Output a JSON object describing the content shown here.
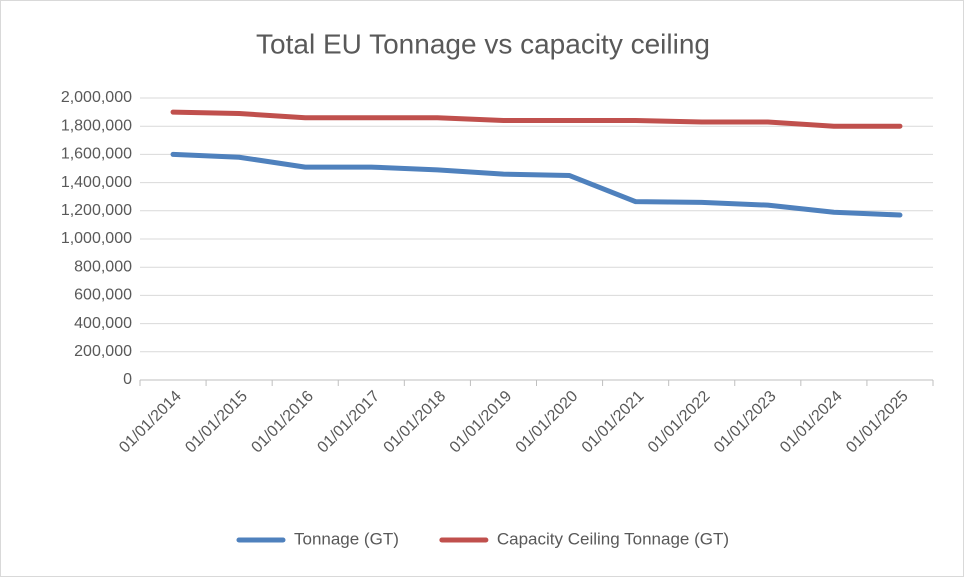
{
  "chart_data": {
    "type": "line",
    "title": "Total EU Tonnage vs capacity ceiling",
    "categories": [
      "01/01/2014",
      "01/01/2015",
      "01/01/2016",
      "01/01/2017",
      "01/01/2018",
      "01/01/2019",
      "01/01/2020",
      "01/01/2021",
      "01/01/2022",
      "01/01/2023",
      "01/01/2024",
      "01/01/2025"
    ],
    "series": [
      {
        "name": "Tonnage (GT)",
        "color": "#4f81bd",
        "values": [
          1600000,
          1580000,
          1510000,
          1510000,
          1490000,
          1460000,
          1450000,
          1265000,
          1260000,
          1240000,
          1190000,
          1170000
        ]
      },
      {
        "name": "Capacity Ceiling Tonnage (GT)",
        "color": "#c0504d",
        "values": [
          1900000,
          1890000,
          1860000,
          1860000,
          1860000,
          1840000,
          1840000,
          1840000,
          1830000,
          1830000,
          1800000,
          1800000
        ]
      }
    ],
    "ylim": [
      0,
      2000000
    ],
    "yticks": [
      0,
      {
        "value": 200000,
        "label": "200,000"
      },
      {
        "value": 400000,
        "label": "400,000"
      },
      {
        "value": 600000,
        "label": "600,000"
      },
      {
        "value": 800000,
        "label": "800,000"
      },
      {
        "value": 1000000,
        "label": "1,000,000"
      },
      {
        "value": 1200000,
        "label": "1,200,000"
      },
      {
        "value": 1400000,
        "label": "1,400,000"
      },
      {
        "value": 1600000,
        "label": "1,600,000"
      },
      {
        "value": 1800000,
        "label": "1,800,000"
      },
      {
        "value": 2000000,
        "label": "2,000,000"
      }
    ],
    "grid": true,
    "legend": "bottom"
  }
}
